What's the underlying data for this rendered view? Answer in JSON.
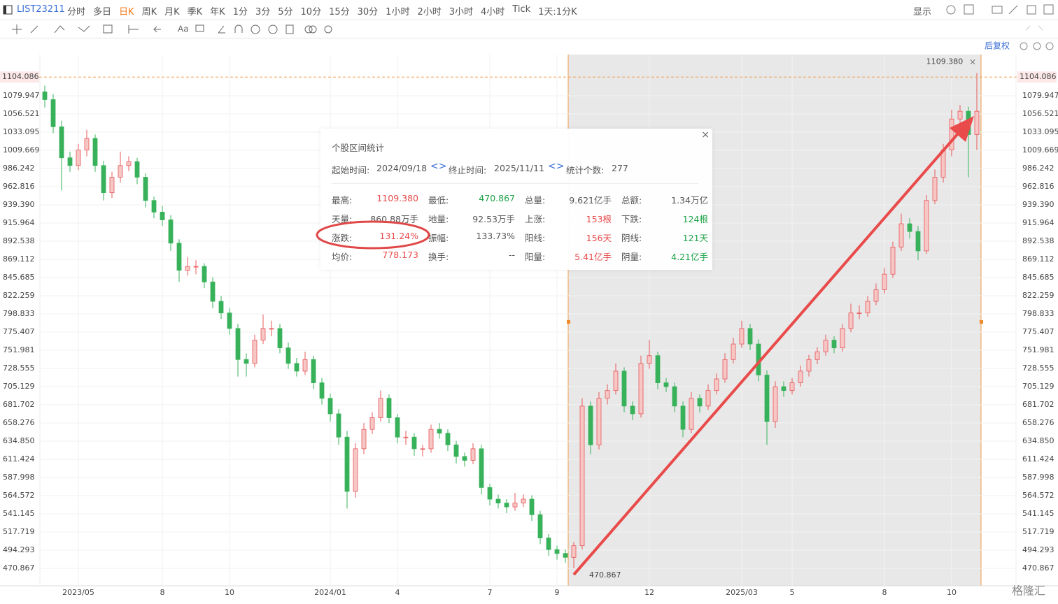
{
  "toolbar": {
    "symbol": "LIST23211",
    "periods": [
      "分时",
      "多日",
      "日K",
      "周K",
      "月K",
      "季K",
      "年K",
      "1分",
      "3分",
      "5分",
      "10分",
      "15分",
      "30分",
      "1小时",
      "2小时",
      "3小时",
      "4小时",
      "Tick",
      "1天:1分K"
    ],
    "active_index": 2,
    "display": "显示"
  },
  "chart_data": {
    "type": "candlestick",
    "adjust": "后复权",
    "up_color": "#e8585a",
    "down_color": "#38b25a",
    "ylim": [
      448.3,
      1133.1
    ],
    "yticks": [
      470.867,
      494.293,
      517.719,
      541.145,
      564.572,
      587.998,
      611.424,
      {
        "value": 634.85,
        "label": "634.850"
      },
      658.276,
      681.702,
      705.129,
      728.555,
      751.981,
      775.407,
      798.833,
      822.259,
      845.685,
      869.112,
      892.538,
      915.964,
      {
        "value": 939.39,
        "label": "939.390"
      },
      962.816,
      986.242,
      1009.669,
      1033.095,
      1056.521,
      1079.947
    ],
    "xticks": [
      {
        "value": 4,
        "label": "2023/05"
      },
      {
        "value": 14,
        "label": "8"
      },
      {
        "value": 22,
        "label": "10"
      },
      {
        "value": 34,
        "label": "2024/01"
      },
      {
        "value": 42,
        "label": "4"
      },
      {
        "value": 53,
        "label": "7"
      },
      {
        "value": 61,
        "label": "9"
      },
      {
        "value": 72,
        "label": "12"
      },
      {
        "value": 83,
        "label": "2025/03"
      },
      {
        "value": 89,
        "label": "5"
      },
      {
        "value": 100,
        "label": "8"
      },
      {
        "value": 108,
        "label": "10"
      }
    ],
    "price_line": 1104.086,
    "range_high": {
      "value": 1109.38,
      "label": "1109.380"
    },
    "range_low": 470.867,
    "candles": [
      [
        1085,
        1093,
        1065,
        1075
      ],
      [
        1075,
        1082,
        1032,
        1040
      ],
      [
        1040,
        1048,
        958,
        1000
      ],
      [
        1000,
        1008,
        982,
        990
      ],
      [
        990,
        1018,
        984,
        1010
      ],
      [
        1010,
        1036,
        1002,
        1025
      ],
      [
        1025,
        1030,
        982,
        990
      ],
      [
        990,
        996,
        945,
        955
      ],
      [
        955,
        982,
        948,
        975
      ],
      [
        975,
        1008,
        968,
        990
      ],
      [
        990,
        1002,
        983,
        995
      ],
      [
        995,
        1000,
        966,
        975
      ],
      [
        975,
        980,
        936,
        945
      ],
      [
        945,
        950,
        922,
        930
      ],
      [
        930,
        938,
        912,
        920
      ],
      [
        920,
        926,
        880,
        890
      ],
      [
        890,
        895,
        840,
        855
      ],
      [
        855,
        872,
        848,
        860
      ],
      [
        860,
        868,
        850,
        860
      ],
      [
        860,
        864,
        832,
        840
      ],
      [
        840,
        846,
        806,
        815
      ],
      [
        815,
        822,
        792,
        800
      ],
      [
        800,
        806,
        772,
        780
      ],
      [
        780,
        786,
        718,
        740
      ],
      [
        740,
        748,
        718,
        735
      ],
      [
        735,
        772,
        730,
        765
      ],
      [
        765,
        798,
        760,
        780
      ],
      [
        780,
        790,
        770,
        780
      ],
      [
        780,
        786,
        748,
        755
      ],
      [
        755,
        762,
        728,
        735
      ],
      [
        735,
        742,
        718,
        725
      ],
      [
        725,
        750,
        720,
        740
      ],
      [
        740,
        745,
        702,
        710
      ],
      [
        710,
        716,
        682,
        690
      ],
      [
        690,
        696,
        660,
        670
      ],
      [
        670,
        676,
        630,
        640
      ],
      [
        640,
        648,
        548,
        570
      ],
      [
        570,
        632,
        562,
        625
      ],
      [
        625,
        658,
        618,
        650
      ],
      [
        650,
        672,
        644,
        665
      ],
      [
        665,
        700,
        660,
        690
      ],
      [
        690,
        695,
        658,
        665
      ],
      [
        665,
        670,
        632,
        640
      ],
      [
        640,
        648,
        630,
        640
      ],
      [
        640,
        645,
        616,
        625
      ],
      [
        625,
        630,
        615,
        625
      ],
      [
        625,
        656,
        620,
        650
      ],
      [
        650,
        658,
        638,
        645
      ],
      [
        645,
        650,
        622,
        630
      ],
      [
        630,
        635,
        606,
        615
      ],
      [
        615,
        620,
        602,
        610
      ],
      [
        610,
        632,
        605,
        625
      ],
      [
        625,
        630,
        566,
        575
      ],
      [
        575,
        580,
        552,
        560
      ],
      [
        560,
        566,
        548,
        555
      ],
      [
        555,
        560,
        542,
        550
      ],
      [
        550,
        568,
        545,
        555
      ],
      [
        555,
        566,
        550,
        560
      ],
      [
        560,
        565,
        532,
        540
      ],
      [
        540,
        545,
        502,
        510
      ],
      [
        510,
        515,
        487,
        495
      ],
      [
        495,
        500,
        482,
        490
      ],
      [
        490,
        495,
        478,
        485
      ],
      [
        485,
        505,
        470.867,
        500
      ],
      [
        500,
        690,
        495,
        680
      ],
      [
        680,
        686,
        618,
        630
      ],
      [
        630,
        698,
        624,
        690
      ],
      [
        690,
        708,
        682,
        700
      ],
      [
        700,
        735,
        695,
        725
      ],
      [
        725,
        730,
        672,
        680
      ],
      [
        680,
        686,
        662,
        670
      ],
      [
        670,
        745,
        665,
        735
      ],
      [
        735,
        765,
        728,
        745
      ],
      [
        745,
        750,
        702,
        710
      ],
      [
        710,
        716,
        698,
        705
      ],
      [
        705,
        710,
        672,
        680
      ],
      [
        680,
        686,
        640,
        650
      ],
      [
        650,
        698,
        645,
        690
      ],
      [
        690,
        695,
        672,
        680
      ],
      [
        680,
        708,
        675,
        700
      ],
      [
        700,
        722,
        695,
        715
      ],
      [
        715,
        748,
        710,
        740
      ],
      [
        740,
        768,
        735,
        760
      ],
      [
        760,
        790,
        755,
        780
      ],
      [
        780,
        786,
        752,
        760
      ],
      [
        760,
        766,
        712,
        720
      ],
      [
        720,
        726,
        630,
        660
      ],
      [
        660,
        712,
        652,
        705
      ],
      [
        705,
        712,
        692,
        700
      ],
      [
        700,
        716,
        695,
        710
      ],
      [
        710,
        732,
        705,
        725
      ],
      [
        725,
        746,
        718,
        740
      ],
      [
        740,
        756,
        734,
        750
      ],
      [
        750,
        772,
        745,
        765
      ],
      [
        765,
        770,
        748,
        755
      ],
      [
        755,
        786,
        750,
        780
      ],
      [
        780,
        812,
        775,
        800
      ],
      [
        800,
        810,
        792,
        800
      ],
      [
        800,
        822,
        795,
        815
      ],
      [
        815,
        838,
        810,
        830
      ],
      [
        830,
        858,
        825,
        850
      ],
      [
        850,
        892,
        845,
        885
      ],
      [
        885,
        928,
        880,
        915
      ],
      [
        915,
        922,
        896,
        905
      ],
      [
        905,
        912,
        868,
        880
      ],
      [
        880,
        952,
        876,
        945
      ],
      [
        945,
        985,
        940,
        975
      ],
      [
        975,
        1018,
        968,
        1010
      ],
      [
        1010,
        1062,
        1002,
        1050
      ],
      [
        1050,
        1068,
        1040,
        1060
      ],
      [
        1060,
        1066,
        975,
        1030
      ],
      [
        1030,
        1109.38,
        1010,
        1060
      ]
    ]
  },
  "stats": {
    "title": "个股区间统计",
    "start_label": "起始时间:",
    "start": "2024/09/18",
    "end_label": "终止时间:",
    "end": "2025/11/11",
    "count_label": "统计个数:",
    "count": "277",
    "items": [
      {
        "label": "最高:",
        "value": "1109.380",
        "color": "#e84a4a"
      },
      {
        "label": "最低:",
        "value": "470.867",
        "color": "#1fa34a"
      },
      {
        "label": "总量:",
        "value": "9.621亿手",
        "color": "#555555"
      },
      {
        "label": "总额:",
        "value": "1.34万亿",
        "color": "#555555"
      },
      {
        "label": "天量:",
        "value": "860.88万手",
        "color": "#555555"
      },
      {
        "label": "地量:",
        "value": "92.53万手",
        "color": "#555555"
      },
      {
        "label": "上涨:",
        "value": "153根",
        "color": "#e84a4a"
      },
      {
        "label": "下跌:",
        "value": "124根",
        "color": "#1fa34a"
      },
      {
        "label": "涨跌:",
        "value": "131.24%",
        "color": "#e84a4a"
      },
      {
        "label": "振幅:",
        "value": "133.73%",
        "color": "#555555"
      },
      {
        "label": "阳线:",
        "value": "156天",
        "color": "#e84a4a"
      },
      {
        "label": "阴线:",
        "value": "121天",
        "color": "#1fa34a"
      },
      {
        "label": "均价:",
        "value": "778.173",
        "color": "#e84a4a"
      },
      {
        "label": "换手:",
        "value": "--",
        "color": "#555555"
      },
      {
        "label": "阳量:",
        "value": "5.41亿手",
        "color": "#e84a4a"
      },
      {
        "label": "阴量:",
        "value": "4.21亿手",
        "color": "#1fa34a"
      }
    ]
  },
  "watermark": "格隆汇"
}
